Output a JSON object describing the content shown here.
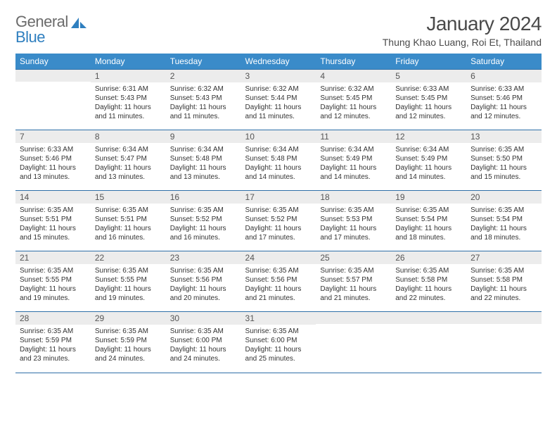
{
  "brand": {
    "part1": "General",
    "part2": "Blue"
  },
  "header": {
    "month_title": "January 2024",
    "location": "Thung Khao Luang, Roi Et, Thailand"
  },
  "dow": [
    "Sunday",
    "Monday",
    "Tuesday",
    "Wednesday",
    "Thursday",
    "Friday",
    "Saturday"
  ],
  "colors": {
    "header_bg": "#3a8bc9",
    "rule": "#2f6fa8",
    "daynum_bg": "#ececec"
  },
  "weeks": [
    [
      {
        "n": "",
        "sr": "",
        "ss": "",
        "dl": ""
      },
      {
        "n": "1",
        "sr": "Sunrise: 6:31 AM",
        "ss": "Sunset: 5:43 PM",
        "dl": "Daylight: 11 hours and 11 minutes."
      },
      {
        "n": "2",
        "sr": "Sunrise: 6:32 AM",
        "ss": "Sunset: 5:43 PM",
        "dl": "Daylight: 11 hours and 11 minutes."
      },
      {
        "n": "3",
        "sr": "Sunrise: 6:32 AM",
        "ss": "Sunset: 5:44 PM",
        "dl": "Daylight: 11 hours and 11 minutes."
      },
      {
        "n": "4",
        "sr": "Sunrise: 6:32 AM",
        "ss": "Sunset: 5:45 PM",
        "dl": "Daylight: 11 hours and 12 minutes."
      },
      {
        "n": "5",
        "sr": "Sunrise: 6:33 AM",
        "ss": "Sunset: 5:45 PM",
        "dl": "Daylight: 11 hours and 12 minutes."
      },
      {
        "n": "6",
        "sr": "Sunrise: 6:33 AM",
        "ss": "Sunset: 5:46 PM",
        "dl": "Daylight: 11 hours and 12 minutes."
      }
    ],
    [
      {
        "n": "7",
        "sr": "Sunrise: 6:33 AM",
        "ss": "Sunset: 5:46 PM",
        "dl": "Daylight: 11 hours and 13 minutes."
      },
      {
        "n": "8",
        "sr": "Sunrise: 6:34 AM",
        "ss": "Sunset: 5:47 PM",
        "dl": "Daylight: 11 hours and 13 minutes."
      },
      {
        "n": "9",
        "sr": "Sunrise: 6:34 AM",
        "ss": "Sunset: 5:48 PM",
        "dl": "Daylight: 11 hours and 13 minutes."
      },
      {
        "n": "10",
        "sr": "Sunrise: 6:34 AM",
        "ss": "Sunset: 5:48 PM",
        "dl": "Daylight: 11 hours and 14 minutes."
      },
      {
        "n": "11",
        "sr": "Sunrise: 6:34 AM",
        "ss": "Sunset: 5:49 PM",
        "dl": "Daylight: 11 hours and 14 minutes."
      },
      {
        "n": "12",
        "sr": "Sunrise: 6:34 AM",
        "ss": "Sunset: 5:49 PM",
        "dl": "Daylight: 11 hours and 14 minutes."
      },
      {
        "n": "13",
        "sr": "Sunrise: 6:35 AM",
        "ss": "Sunset: 5:50 PM",
        "dl": "Daylight: 11 hours and 15 minutes."
      }
    ],
    [
      {
        "n": "14",
        "sr": "Sunrise: 6:35 AM",
        "ss": "Sunset: 5:51 PM",
        "dl": "Daylight: 11 hours and 15 minutes."
      },
      {
        "n": "15",
        "sr": "Sunrise: 6:35 AM",
        "ss": "Sunset: 5:51 PM",
        "dl": "Daylight: 11 hours and 16 minutes."
      },
      {
        "n": "16",
        "sr": "Sunrise: 6:35 AM",
        "ss": "Sunset: 5:52 PM",
        "dl": "Daylight: 11 hours and 16 minutes."
      },
      {
        "n": "17",
        "sr": "Sunrise: 6:35 AM",
        "ss": "Sunset: 5:52 PM",
        "dl": "Daylight: 11 hours and 17 minutes."
      },
      {
        "n": "18",
        "sr": "Sunrise: 6:35 AM",
        "ss": "Sunset: 5:53 PM",
        "dl": "Daylight: 11 hours and 17 minutes."
      },
      {
        "n": "19",
        "sr": "Sunrise: 6:35 AM",
        "ss": "Sunset: 5:54 PM",
        "dl": "Daylight: 11 hours and 18 minutes."
      },
      {
        "n": "20",
        "sr": "Sunrise: 6:35 AM",
        "ss": "Sunset: 5:54 PM",
        "dl": "Daylight: 11 hours and 18 minutes."
      }
    ],
    [
      {
        "n": "21",
        "sr": "Sunrise: 6:35 AM",
        "ss": "Sunset: 5:55 PM",
        "dl": "Daylight: 11 hours and 19 minutes."
      },
      {
        "n": "22",
        "sr": "Sunrise: 6:35 AM",
        "ss": "Sunset: 5:55 PM",
        "dl": "Daylight: 11 hours and 19 minutes."
      },
      {
        "n": "23",
        "sr": "Sunrise: 6:35 AM",
        "ss": "Sunset: 5:56 PM",
        "dl": "Daylight: 11 hours and 20 minutes."
      },
      {
        "n": "24",
        "sr": "Sunrise: 6:35 AM",
        "ss": "Sunset: 5:56 PM",
        "dl": "Daylight: 11 hours and 21 minutes."
      },
      {
        "n": "25",
        "sr": "Sunrise: 6:35 AM",
        "ss": "Sunset: 5:57 PM",
        "dl": "Daylight: 11 hours and 21 minutes."
      },
      {
        "n": "26",
        "sr": "Sunrise: 6:35 AM",
        "ss": "Sunset: 5:58 PM",
        "dl": "Daylight: 11 hours and 22 minutes."
      },
      {
        "n": "27",
        "sr": "Sunrise: 6:35 AM",
        "ss": "Sunset: 5:58 PM",
        "dl": "Daylight: 11 hours and 22 minutes."
      }
    ],
    [
      {
        "n": "28",
        "sr": "Sunrise: 6:35 AM",
        "ss": "Sunset: 5:59 PM",
        "dl": "Daylight: 11 hours and 23 minutes."
      },
      {
        "n": "29",
        "sr": "Sunrise: 6:35 AM",
        "ss": "Sunset: 5:59 PM",
        "dl": "Daylight: 11 hours and 24 minutes."
      },
      {
        "n": "30",
        "sr": "Sunrise: 6:35 AM",
        "ss": "Sunset: 6:00 PM",
        "dl": "Daylight: 11 hours and 24 minutes."
      },
      {
        "n": "31",
        "sr": "Sunrise: 6:35 AM",
        "ss": "Sunset: 6:00 PM",
        "dl": "Daylight: 11 hours and 25 minutes."
      },
      {
        "n": "",
        "sr": "",
        "ss": "",
        "dl": ""
      },
      {
        "n": "",
        "sr": "",
        "ss": "",
        "dl": ""
      },
      {
        "n": "",
        "sr": "",
        "ss": "",
        "dl": ""
      }
    ]
  ]
}
